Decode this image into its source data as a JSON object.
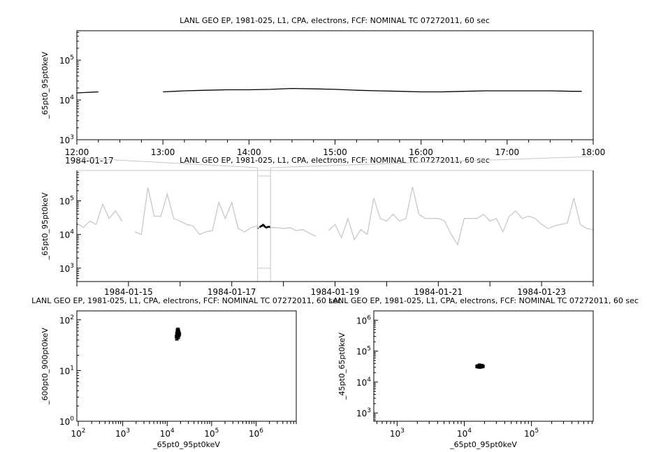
{
  "chart_data": [
    {
      "id": "top",
      "type": "line",
      "title": "LANL GEO EP, 1981-025, L1, CPA, electrons, FCF: NOMINAL TC 07272011, 60 sec",
      "ylabel": "_65pt0_95pt0keV",
      "yscale": "log",
      "ylim": [
        1000,
        550000
      ],
      "xlim": [
        "1984-01-17T12:00",
        "1984-01-17T18:00"
      ],
      "xticks": [
        "12:00",
        "13:00",
        "14:00",
        "15:00",
        "16:00",
        "17:00",
        "18:00"
      ],
      "x_date_label": "1984-01-17",
      "yticks": [
        "10^3",
        "10^4",
        "10^5"
      ],
      "line_color": "#000000",
      "series": [
        {
          "x": [
            "12:00",
            "12:15",
            "12:30",
            "12:45",
            "13:00",
            "13:15",
            "13:30",
            "13:45",
            "14:00",
            "14:15",
            "14:30",
            "14:45",
            "15:00",
            "15:15",
            "15:30",
            "15:45",
            "16:00",
            "16:15",
            "16:30",
            "16:45",
            "17:00",
            "17:15",
            "17:30",
            "17:45",
            "17:52",
            "17:58",
            "18:00"
          ],
          "y": [
            15000,
            16000,
            null,
            null,
            16000,
            17000,
            17500,
            18000,
            18000,
            18500,
            19500,
            19000,
            18500,
            17500,
            17000,
            16500,
            16000,
            16000,
            16500,
            17000,
            17000,
            17000,
            17000,
            16500,
            16500,
            null,
            16000
          ]
        }
      ]
    },
    {
      "id": "middle",
      "type": "line",
      "title": "LANL GEO EP, 1981-025, L1, CPA, electrons, FCF: NOMINAL TC 07272011, 60 sec",
      "ylabel": "_65pt0_95pt0keV",
      "yscale": "log",
      "ylim": [
        400,
        800000
      ],
      "xlim": [
        "1984-01-14",
        "1984-01-24"
      ],
      "xticks": [
        "1984-01-15",
        "1984-01-17",
        "1984-01-19",
        "1984-01-21",
        "1984-01-23"
      ],
      "yticks": [
        "10^3",
        "10^4",
        "10^5"
      ],
      "context_color": "#c8c8c8",
      "highlight_range": [
        "1984-01-17T12:00",
        "1984-01-17T18:00"
      ],
      "series_step_hours": 3,
      "series": [
        {
          "start": "1984-01-14T00:00",
          "y": [
            22000,
            16000,
            25000,
            20000,
            80000,
            30000,
            50000,
            25000,
            null,
            12000,
            10000,
            250000,
            35000,
            35000,
            160000,
            30000,
            25000,
            20000,
            18000,
            10000,
            12000,
            13000,
            90000,
            30000,
            90000,
            15000,
            12000,
            16000,
            18000,
            17000,
            16000,
            16000,
            15000,
            16000,
            13000,
            14000,
            11000,
            9000,
            null,
            13000,
            20000,
            8000,
            30000,
            7000,
            14000,
            10000,
            120000,
            30000,
            25000,
            40000,
            25000,
            30000,
            260000,
            40000,
            30000,
            30000,
            30000,
            25000,
            10000,
            5000,
            30000,
            30000,
            30000,
            40000,
            25000,
            30000,
            12000,
            35000,
            50000,
            30000,
            35000,
            30000,
            20000,
            15000,
            18000,
            20000,
            22000,
            120000,
            20000,
            15000,
            14000
          ]
        }
      ]
    },
    {
      "id": "bottom-left",
      "type": "scatter",
      "title": "LANL GEO EP, 1981-025, L1, CPA, electrons, FCF: NOMINAL TC 07272011, 60 sec",
      "xlabel": "_65pt0_95pt0keV",
      "ylabel": "_600pt0_900pt0keV",
      "xscale": "log",
      "yscale": "log",
      "xlim": [
        93,
        8000000
      ],
      "ylim": [
        1,
        150
      ],
      "xticks": [
        "10^2",
        "10^3",
        "10^4",
        "10^5",
        "10^6"
      ],
      "yticks": [
        "10^0",
        "10^1",
        "10^2"
      ],
      "points": [
        [
          16500,
          42
        ],
        [
          17000,
          48
        ],
        [
          17500,
          55
        ],
        [
          18000,
          60
        ],
        [
          16800,
          52
        ],
        [
          17200,
          58
        ],
        [
          18500,
          50
        ],
        [
          17800,
          45
        ],
        [
          16200,
          47
        ],
        [
          17500,
          65
        ],
        [
          18200,
          56
        ],
        [
          17000,
          62
        ],
        [
          16600,
          54
        ],
        [
          18800,
          53
        ]
      ]
    },
    {
      "id": "bottom-right",
      "type": "scatter",
      "title": "LANL GEO EP, 1981-025, L1, CPA, electrons, FCF: NOMINAL TC 07272011, 60 sec",
      "xlabel": "_65pt0_95pt0keV",
      "ylabel": "_45pt0_65pt0keV",
      "xscale": "log",
      "yscale": "log",
      "xlim": [
        450,
        830000
      ],
      "ylim": [
        540,
        2000000
      ],
      "xticks": [
        "10^3",
        "10^4",
        "10^5"
      ],
      "yticks": [
        "10^3",
        "10^4",
        "10^5",
        "10^6"
      ],
      "points": [
        [
          15500,
          32000
        ],
        [
          16000,
          33000
        ],
        [
          16500,
          31000
        ],
        [
          17000,
          34000
        ],
        [
          17500,
          32000
        ],
        [
          18000,
          33000
        ],
        [
          18500,
          31500
        ],
        [
          19000,
          32500
        ],
        [
          16800,
          35000
        ],
        [
          17200,
          30500
        ],
        [
          15800,
          31500
        ],
        [
          18200,
          34000
        ]
      ]
    }
  ]
}
